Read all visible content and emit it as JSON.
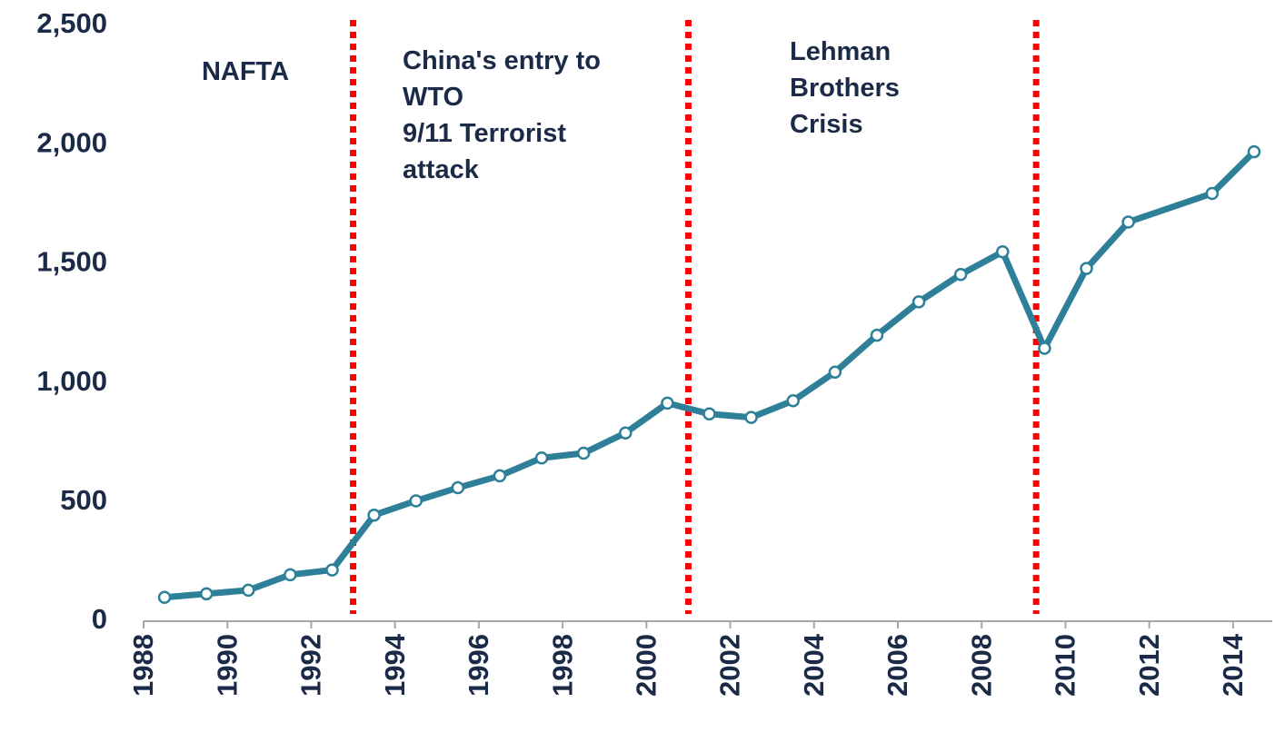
{
  "chart_data": {
    "type": "line",
    "x": [
      1988,
      1989,
      1990,
      1991,
      1992,
      1993,
      1994,
      1995,
      1996,
      1997,
      1998,
      1999,
      2000,
      2001,
      2002,
      2003,
      2004,
      2005,
      2006,
      2007,
      2008,
      2009,
      2010,
      2011,
      2013,
      2014
    ],
    "series": [
      {
        "color": "#2e8099",
        "values": [
          100,
          115,
          130,
          195,
          215,
          445,
          505,
          560,
          610,
          685,
          705,
          790,
          915,
          870,
          855,
          925,
          1045,
          1200,
          1340,
          1455,
          1550,
          1145,
          1480,
          1675,
          1795,
          1970
        ]
      }
    ],
    "xlim": [
      1987.5,
      2014.5
    ],
    "xticks": [
      1988,
      1990,
      1992,
      1994,
      1996,
      1998,
      2000,
      2002,
      2004,
      2006,
      2008,
      2010,
      2012,
      2014
    ],
    "ylim": [
      0,
      2500
    ],
    "yticks": [
      0,
      500,
      {
        "value": 1000,
        "label": "1,000"
      },
      {
        "value": 1500,
        "label": "1,500"
      },
      {
        "value": 2000,
        "label": "2,000"
      },
      {
        "value": 2500,
        "label": "2,500"
      }
    ],
    "events": [
      {
        "x": 1992.5,
        "color": "#ff0000",
        "lines": [
          "NAFTA"
        ]
      },
      {
        "x": 2000.5,
        "color": "#ff0000",
        "lines": [
          "China's entry to",
          "WTO",
          "9/11 Terrorist",
          "attack"
        ]
      },
      {
        "x": 2008.8,
        "color": "#ff0000",
        "lines": [
          "Lehman",
          "Brothers",
          "Crisis"
        ]
      }
    ]
  }
}
